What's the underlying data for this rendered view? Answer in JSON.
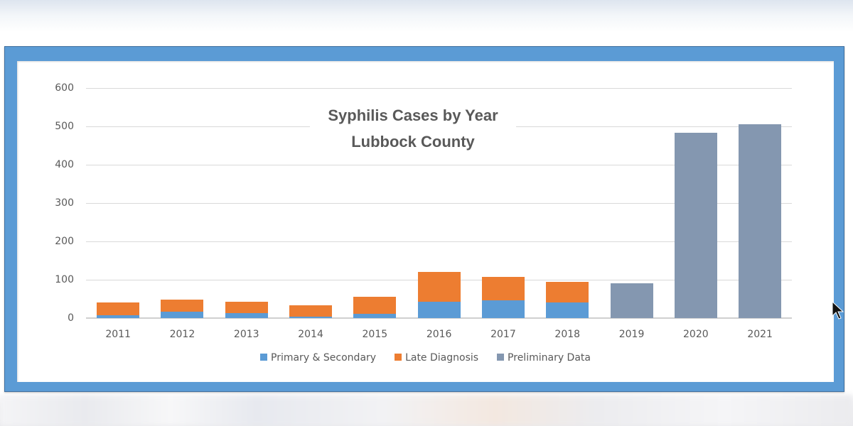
{
  "chart_data": {
    "type": "bar",
    "stacked": true,
    "title": "Syphilis Cases by Year",
    "subtitle": "Lubbock County",
    "xlabel": "",
    "ylabel": "",
    "ylim": [
      0,
      600
    ],
    "yticks": [
      0,
      100,
      200,
      300,
      400,
      500,
      600
    ],
    "grid": true,
    "legend_position": "bottom",
    "categories": [
      "2011",
      "2012",
      "2013",
      "2014",
      "2015",
      "2016",
      "2017",
      "2018",
      "2019",
      "2020",
      "2021"
    ],
    "series": [
      {
        "name": "Primary & Secondary",
        "color": "#5b9bd5",
        "values": [
          7,
          17,
          13,
          4,
          11,
          42,
          47,
          41,
          0,
          0,
          0
        ]
      },
      {
        "name": "Late Diagnosis",
        "color": "#ed7d31",
        "values": [
          33,
          32,
          30,
          30,
          45,
          78,
          60,
          53,
          0,
          0,
          0
        ]
      },
      {
        "name": "Preliminary Data",
        "color": "#8497b0",
        "values": [
          0,
          0,
          0,
          0,
          0,
          0,
          0,
          0,
          91,
          483,
          505
        ]
      }
    ],
    "totals": [
      40,
      49,
      43,
      34,
      56,
      120,
      107,
      94,
      91,
      483,
      505
    ]
  },
  "legend": [
    {
      "label": "Primary & Secondary",
      "color": "#5b9bd5"
    },
    {
      "label": "Late Diagnosis",
      "color": "#ed7d31"
    },
    {
      "label": "Preliminary Data",
      "color": "#8497b0"
    }
  ],
  "colors": {
    "frame": "#5b9bd5",
    "grid": "#d9d9d9",
    "text": "#595959"
  }
}
